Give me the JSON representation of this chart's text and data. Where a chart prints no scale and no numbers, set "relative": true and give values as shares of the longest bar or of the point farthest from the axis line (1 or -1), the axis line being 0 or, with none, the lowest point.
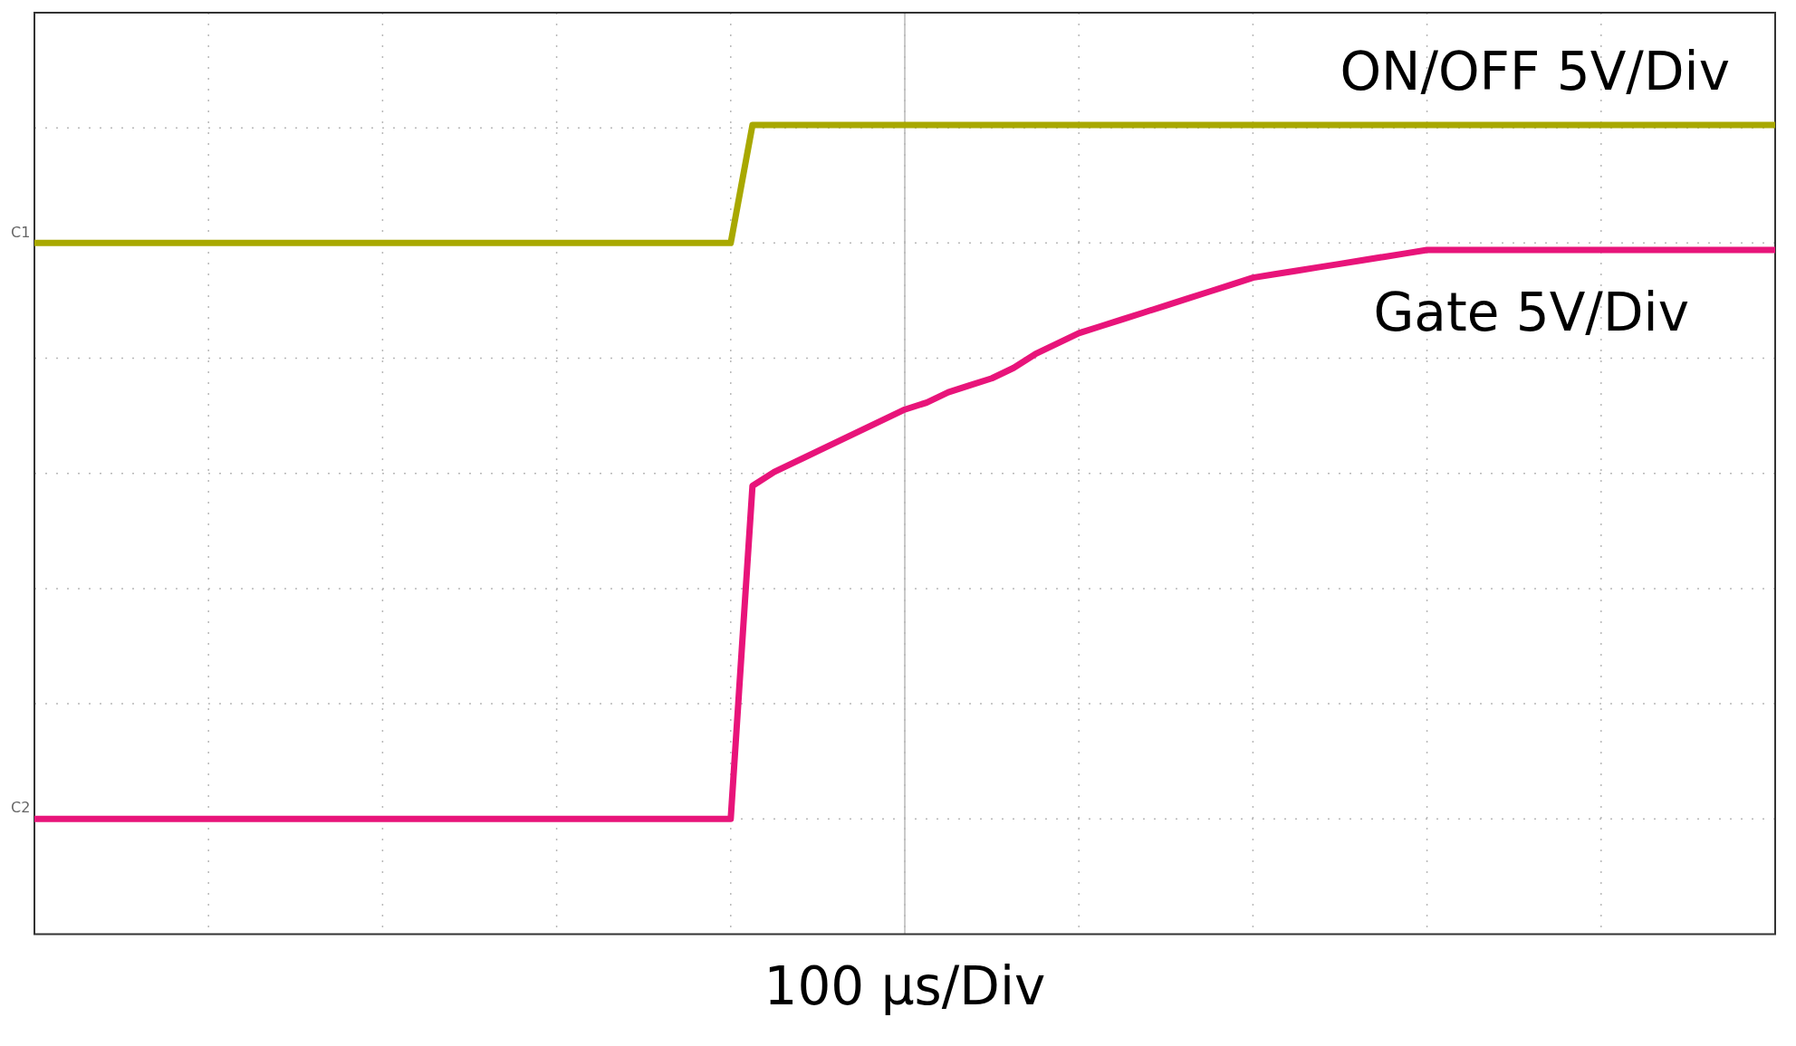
{
  "chart_data": {
    "type": "line",
    "relative": true,
    "xlabel": "100 µs/Div",
    "grid": true,
    "legend": false,
    "marker": "none",
    "line_style": "solid",
    "categories": [
      null,
      null,
      null,
      null,
      null,
      null,
      null,
      null,
      null,
      null,
      null,
      null,
      null,
      null,
      null,
      null,
      null,
      null,
      null,
      null,
      null,
      null,
      null,
      null,
      null,
      null,
      null,
      null,
      null,
      null,
      null,
      null,
      null,
      null,
      null,
      null,
      null,
      null,
      null,
      null,
      null,
      null,
      null,
      null,
      null,
      null,
      null,
      null,
      null,
      null,
      null,
      null,
      null,
      null,
      null,
      null,
      null,
      null,
      null,
      null,
      null,
      null,
      null,
      null,
      null,
      null,
      null,
      null,
      null,
      null,
      null,
      null,
      null,
      null,
      null,
      null,
      null,
      null,
      null,
      null,
      null
    ],
    "series": [
      {
        "name": "ON/OFF 5V/Div",
        "color": "#a8a800",
        "values": [
          0.83,
          0.83,
          0.83,
          0.83,
          0.83,
          0.83,
          0.83,
          0.83,
          0.83,
          0.83,
          0.83,
          0.83,
          0.83,
          0.83,
          0.83,
          0.83,
          0.83,
          0.83,
          0.83,
          0.83,
          0.83,
          0.83,
          0.83,
          0.83,
          0.83,
          0.83,
          0.83,
          0.83,
          0.83,
          0.83,
          0.83,
          0.83,
          0.83,
          1,
          1,
          1,
          1,
          1,
          1,
          1,
          1,
          1,
          1,
          1,
          1,
          1,
          1,
          1,
          1,
          1,
          1,
          1,
          1,
          1,
          1,
          1,
          1,
          1,
          1,
          1,
          1,
          1,
          1,
          1,
          1,
          1,
          1,
          1,
          1,
          1,
          1,
          1,
          1,
          1,
          1,
          1,
          1,
          1,
          1,
          1,
          1
        ]
      },
      {
        "name": "Gate 5V/Div",
        "color": "#e8147a",
        "values": [
          0,
          0,
          0,
          0,
          0,
          0,
          0,
          0,
          0,
          0,
          0,
          0,
          0,
          0,
          0,
          0,
          0,
          0,
          0,
          0,
          0,
          0,
          0,
          0,
          0,
          0,
          0,
          0,
          0,
          0,
          0,
          0,
          0,
          0.48,
          0.5,
          0.515,
          0.53,
          0.545,
          0.56,
          0.575,
          0.59,
          0.6,
          0.615,
          0.625,
          0.635,
          0.65,
          0.67,
          0.685,
          0.7,
          0.71,
          0.72,
          0.73,
          0.74,
          0.75,
          0.76,
          0.77,
          0.78,
          0.785,
          0.79,
          0.795,
          0.8,
          0.805,
          0.81,
          0.815,
          0.82,
          0.82,
          0.82,
          0.82,
          0.82,
          0.82,
          0.82,
          0.82,
          0.82,
          0.82,
          0.82,
          0.82,
          0.82,
          0.82,
          0.82,
          0.82,
          0.82
        ]
      }
    ],
    "annotations": [
      "C1",
      "C2"
    ]
  }
}
